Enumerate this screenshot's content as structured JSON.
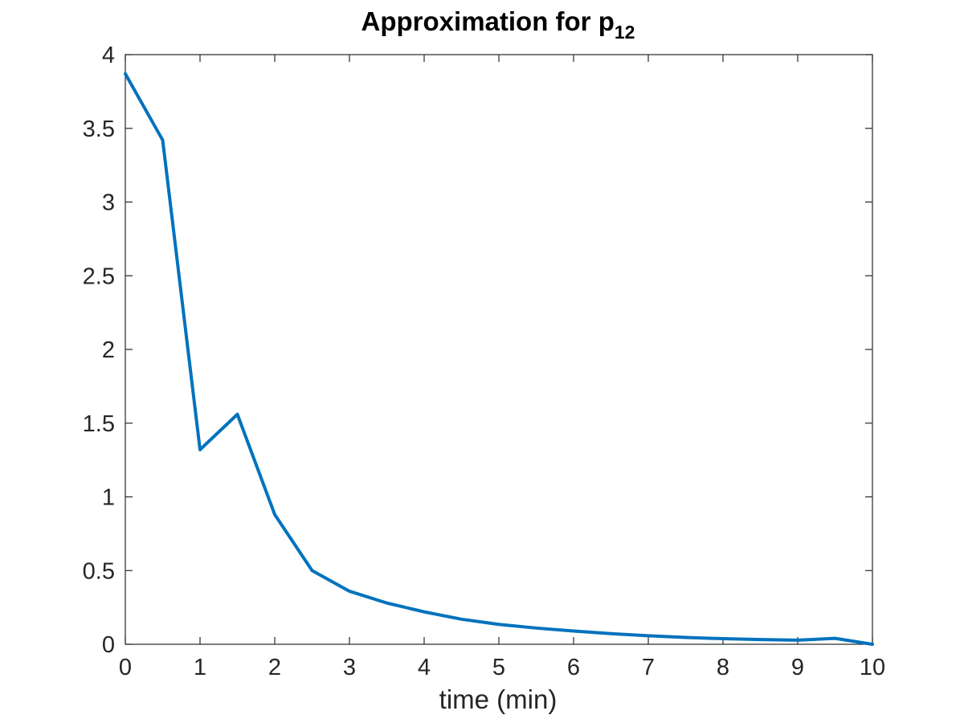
{
  "chart_data": {
    "type": "line",
    "title": "Approximation for p",
    "title_subscript": "12",
    "xlabel": "time (min)",
    "ylabel": "",
    "xlim": [
      0,
      10
    ],
    "ylim": [
      0,
      4
    ],
    "xticks": [
      0,
      1,
      2,
      3,
      4,
      5,
      6,
      7,
      8,
      9,
      10
    ],
    "yticks": [
      0,
      0.5,
      1,
      1.5,
      2,
      2.5,
      3,
      3.5,
      4
    ],
    "xtick_labels": [
      "0",
      "1",
      "2",
      "3",
      "4",
      "5",
      "6",
      "7",
      "8",
      "9",
      "10"
    ],
    "ytick_labels": [
      "0",
      "0.5",
      "1",
      "1.5",
      "2",
      "2.5",
      "3",
      "3.5",
      "4"
    ],
    "grid": false,
    "box": true,
    "series": [
      {
        "color": "#0072BD",
        "x": [
          0,
          0.5,
          1,
          1.5,
          2,
          2.5,
          3,
          3.5,
          4,
          4.5,
          5,
          5.5,
          6,
          6.5,
          7,
          7.5,
          8,
          8.5,
          9,
          9.5,
          10
        ],
        "y": [
          3.87,
          3.42,
          1.32,
          1.56,
          0.88,
          0.5,
          0.36,
          0.28,
          0.22,
          0.17,
          0.135,
          0.11,
          0.09,
          0.072,
          0.058,
          0.046,
          0.038,
          0.032,
          0.028,
          0.04,
          0.0
        ]
      }
    ]
  },
  "colors": {
    "axis": "#262626",
    "line": "#0072BD",
    "background": "#ffffff"
  }
}
